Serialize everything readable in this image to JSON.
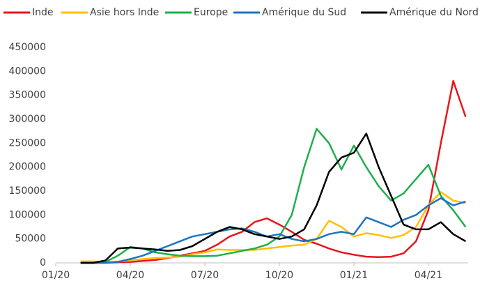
{
  "chart_data": {
    "type": "line",
    "x": [
      1,
      1.5,
      2,
      2.5,
      3,
      3.5,
      4,
      4.5,
      5,
      5.5,
      6,
      6.5,
      7,
      7.5,
      8,
      8.5,
      9,
      9.5,
      10,
      10.5,
      11,
      11.5,
      12,
      12.5,
      13,
      13.5,
      14,
      14.5,
      15,
      15.5,
      16,
      16.5
    ],
    "xlim": [
      0,
      16.6
    ],
    "xticks": [
      {
        "value": 0,
        "label": "01/20"
      },
      {
        "value": 3,
        "label": "04/20"
      },
      {
        "value": 6,
        "label": "07/20"
      },
      {
        "value": 9,
        "label": "10/20"
      },
      {
        "value": 12,
        "label": "01/21"
      },
      {
        "value": 15,
        "label": "04/21"
      }
    ],
    "ylim": [
      0,
      450000
    ],
    "yticks": [
      0,
      50000,
      100000,
      150000,
      200000,
      250000,
      300000,
      350000,
      400000,
      450000
    ],
    "grid": false,
    "legend": "top",
    "series": [
      {
        "name": "Inde",
        "color": "#e8141c",
        "values": [
          0,
          0,
          0,
          1000,
          2000,
          4000,
          6000,
          10000,
          15000,
          20000,
          25000,
          38000,
          55000,
          65000,
          85000,
          93000,
          80000,
          65000,
          48000,
          40000,
          30000,
          22000,
          17000,
          13000,
          12000,
          13000,
          20000,
          45000,
          110000,
          250000,
          380000,
          305000
        ]
      },
      {
        "name": "Asie hors Inde",
        "color": "#ffc000",
        "values": [
          3000,
          3000,
          2000,
          3000,
          5000,
          8000,
          10000,
          11000,
          13000,
          18000,
          22000,
          28000,
          27000,
          27000,
          27000,
          30000,
          33000,
          36000,
          38000,
          50000,
          88000,
          75000,
          55000,
          62000,
          58000,
          52000,
          58000,
          75000,
          120000,
          148000,
          130000,
          125000
        ]
      },
      {
        "name": "Europe",
        "color": "#1db04a",
        "values": [
          0,
          0,
          2000,
          15000,
          33000,
          30000,
          22000,
          18000,
          15000,
          14000,
          14000,
          15000,
          20000,
          25000,
          30000,
          38000,
          55000,
          100000,
          200000,
          280000,
          250000,
          195000,
          245000,
          200000,
          160000,
          130000,
          145000,
          175000,
          205000,
          140000,
          110000,
          75000
        ]
      },
      {
        "name": "Amérique du Sud",
        "color": "#1f73c0",
        "values": [
          0,
          0,
          0,
          2000,
          8000,
          15000,
          25000,
          35000,
          45000,
          55000,
          60000,
          65000,
          70000,
          72000,
          65000,
          55000,
          60000,
          50000,
          45000,
          50000,
          60000,
          65000,
          60000,
          95000,
          85000,
          75000,
          90000,
          100000,
          120000,
          135000,
          120000,
          128000
        ]
      },
      {
        "name": "Amérique du Nord",
        "color": "#000000",
        "values": [
          0,
          0,
          5000,
          30000,
          32000,
          30000,
          28000,
          25000,
          27000,
          35000,
          50000,
          65000,
          75000,
          70000,
          60000,
          55000,
          50000,
          55000,
          70000,
          120000,
          190000,
          220000,
          230000,
          270000,
          200000,
          140000,
          80000,
          70000,
          70000,
          85000,
          60000,
          45000
        ]
      }
    ]
  }
}
